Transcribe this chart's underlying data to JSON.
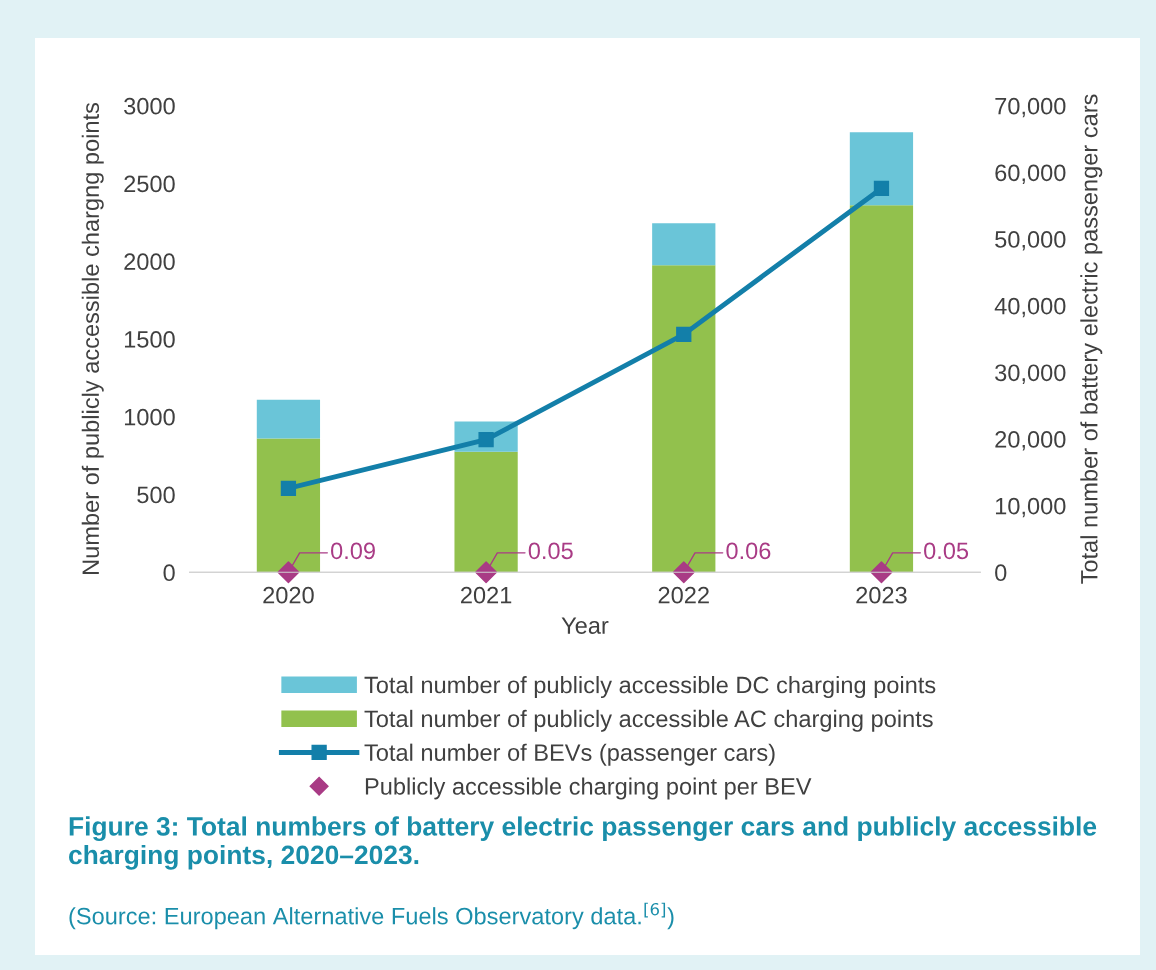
{
  "chart_data": {
    "type": "bar",
    "title": "Figure 3: Total numbers of battery electric passenger cars and publicly accessible charging points, 2020–2023.",
    "xlabel": "Year",
    "ylabel": "Number of publicly accessible chargng points",
    "y2label": "Total number of battery electric passenger cars",
    "categories": [
      "2020",
      "2021",
      "2022",
      "2023"
    ],
    "stacked": true,
    "series": [
      {
        "name": "Total number of publicly accessible AC charging points",
        "color": "#92c14d",
        "values": [
          860,
          775,
          1975,
          2360
        ]
      },
      {
        "name": "Total number of publicly accessible DC charging points",
        "color": "#6ac5d8",
        "values": [
          250,
          195,
          270,
          470
        ]
      },
      {
        "name": "Total number of BEVs (passenger cars)",
        "type": "line",
        "axis": "y2",
        "color": "#137fa9",
        "marker": "square",
        "line_style": "solid",
        "values": [
          12600,
          19900,
          35700,
          57600
        ]
      },
      {
        "name": "Publicly accessible charging point per BEV",
        "type": "scatter",
        "color": "#a93b85",
        "marker": "diamond",
        "values": [
          0.09,
          0.05,
          0.06,
          0.05
        ],
        "value_labels": [
          "0.09",
          "0.05",
          "0.06",
          "0.05"
        ]
      }
    ],
    "ylim": [
      0,
      3000
    ],
    "yticks": [
      0,
      500,
      1000,
      1500,
      2000,
      2500,
      3000
    ],
    "y2lim": [
      0,
      70000
    ],
    "y2ticks": [
      {
        "value": 0,
        "label": "0"
      },
      {
        "value": 10000,
        "label": "10,000"
      },
      {
        "value": 20000,
        "label": "20,000"
      },
      {
        "value": 30000,
        "label": "30,000"
      },
      {
        "value": 40000,
        "label": "40,000"
      },
      {
        "value": 50000,
        "label": "50,000"
      },
      {
        "value": 60000,
        "label": "60,000"
      },
      {
        "value": 70000,
        "label": "70,000"
      }
    ],
    "grid": false,
    "legend": "bottom",
    "annotations": [
      "(Source: European Alternative Fuels Observatory data.$^{[6]}$)"
    ]
  }
}
